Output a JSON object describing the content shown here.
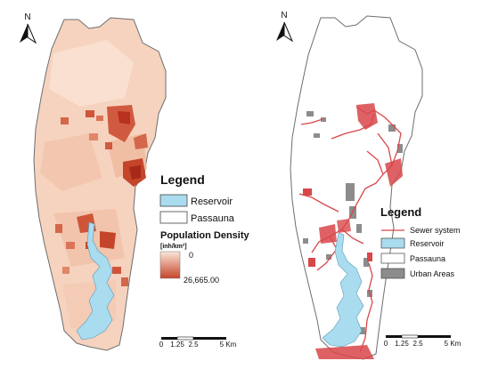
{
  "left_map": {
    "north_label": "N",
    "legend_title": "Legend",
    "legend_items": [
      {
        "label": "Reservoir",
        "fill": "#a9dcef"
      },
      {
        "label": "Passauna",
        "fill": "#ffffff"
      }
    ],
    "density_title": "Population Density",
    "density_unit": "[inh/km²]",
    "density_min": "0",
    "density_max": "26,665.00",
    "ramp_colors": [
      "#fbe6d8",
      "#c4452a"
    ],
    "scale_labels": [
      "0",
      "1.25",
      "2.5",
      "5 Km"
    ]
  },
  "right_map": {
    "north_label": "N",
    "legend_title": "Legend",
    "legend_items": [
      {
        "label": "Sewer system",
        "kind": "line",
        "color": "#d8474a"
      },
      {
        "label": "Reservoir",
        "kind": "box",
        "fill": "#a9dcef"
      },
      {
        "label": "Passauna",
        "kind": "box",
        "fill": "#ffffff"
      },
      {
        "label": "Urban Areas",
        "kind": "box",
        "fill": "#8c8c8c"
      }
    ],
    "scale_labels": [
      "0",
      "1.25",
      "2.5",
      "5 Km"
    ]
  },
  "colors": {
    "basin_fill_left": "#f6d3bf",
    "reservoir": "#a9dcef",
    "density_hot": "#c13a27",
    "sewer": "#d8474a",
    "urban": "#8c8c8c"
  }
}
